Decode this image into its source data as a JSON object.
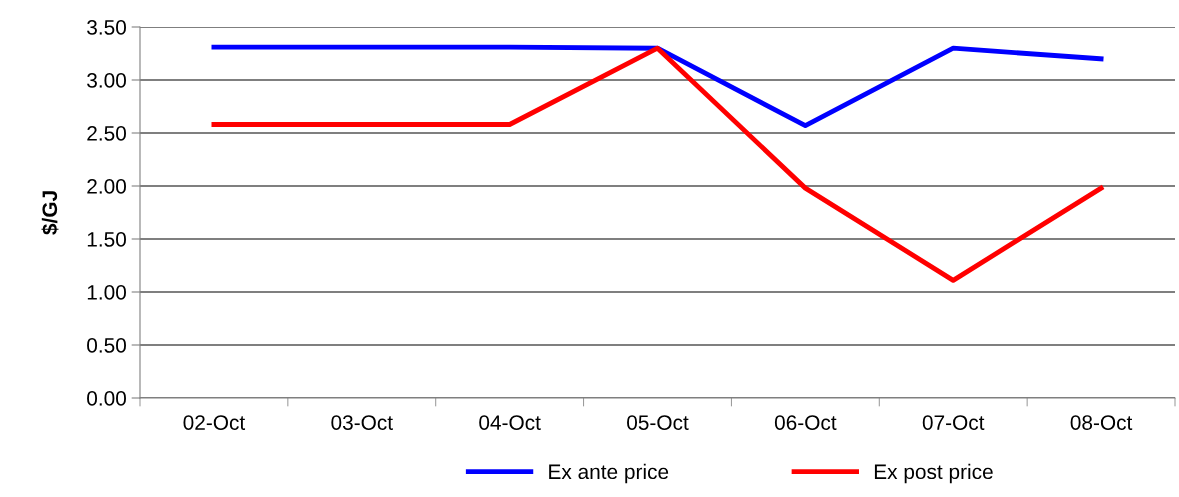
{
  "chart_data": {
    "type": "line",
    "ylabel": "$/GJ",
    "categories": [
      "02-Oct",
      "03-Oct",
      "04-Oct",
      "05-Oct",
      "06-Oct",
      "07-Oct",
      "08-Oct"
    ],
    "series": [
      {
        "name": "Ex ante price",
        "color": "#0000ff",
        "values": [
          3.31,
          3.31,
          3.31,
          3.3,
          2.57,
          3.3,
          3.2
        ]
      },
      {
        "name": "Ex post price",
        "color": "#ff0000",
        "values": [
          2.58,
          2.58,
          2.58,
          3.3,
          1.98,
          1.11,
          1.98
        ]
      }
    ],
    "ylim": [
      0,
      3.5
    ],
    "yticks": [
      {
        "value": 0,
        "label": "0.00"
      },
      {
        "value": 0.5,
        "label": "0.50"
      },
      {
        "value": 1,
        "label": "1.00"
      },
      {
        "value": 1.5,
        "label": "1.50"
      },
      {
        "value": 2,
        "label": "2.00"
      },
      {
        "value": 2.5,
        "label": "2.50"
      },
      {
        "value": 3,
        "label": "3.00"
      },
      {
        "value": 3.5,
        "label": "3.50"
      }
    ],
    "grid": "y",
    "legend": "bottom",
    "marker": "none",
    "line_style": "solid"
  }
}
